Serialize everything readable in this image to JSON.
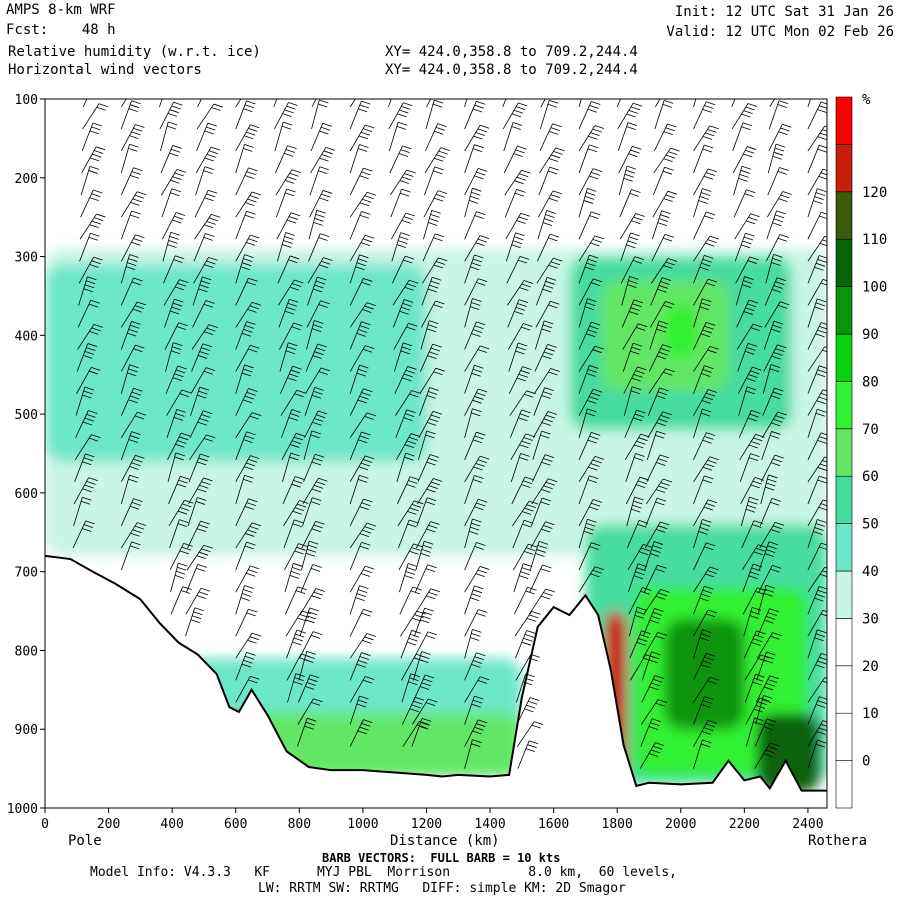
{
  "header": {
    "model": "AMPS 8-km WRF",
    "fcst": "Fcst:    48 h",
    "init": "Init: 12 UTC Sat 31 Jan 26",
    "valid": "Valid: 12 UTC Mon 02 Feb 26",
    "field1": "Relative humidity (w.r.t. ice)",
    "field2": "Horizontal wind vectors",
    "xy1": "XY= 424.0,358.8 to 709.2,244.4",
    "xy2": "XY= 424.0,358.8 to 709.2,244.4"
  },
  "footer": {
    "barb": "BARB VECTORS:  FULL BARB = 10 kts",
    "model_info": "Model Info: V4.3.3   KF      MYJ PBL  Morrison          8.0 km,  60 levels,",
    "physics": "LW: RRTM SW: RRTMG   DIFF: simple KM: 2D Smagor"
  },
  "chart_data": {
    "type": "heatmap",
    "title": "Relative humidity (w.r.t. ice)",
    "xlabel": "Distance (km)",
    "ylabel": "",
    "x_endpoints": {
      "left": "Pole",
      "right": "Rothera"
    },
    "xlim": [
      0,
      2460
    ],
    "ylim": [
      1000,
      100
    ],
    "x_ticks": [
      0,
      200,
      400,
      600,
      800,
      1000,
      1200,
      1400,
      1600,
      1800,
      2000,
      2200,
      2400
    ],
    "y_ticks": [
      100,
      200,
      300,
      400,
      500,
      600,
      700,
      800,
      900,
      1000
    ],
    "colorbar": {
      "unit": "%",
      "levels": [
        0,
        10,
        20,
        30,
        40,
        50,
        60,
        70,
        80,
        90,
        100,
        110,
        120
      ],
      "colors": [
        "#ffffff",
        "#ffffff",
        "#ffffff",
        "#ffffff",
        "#c8f5e6",
        "#6ee6c8",
        "#46dca0",
        "#64e664",
        "#32f032",
        "#0ad20a",
        "#0a960a",
        "#0a640a",
        "#3c5a0a",
        "#c81e0a",
        "#ff0000"
      ]
    },
    "terrain_profile": [
      [
        0,
        680
      ],
      [
        80,
        684
      ],
      [
        150,
        700
      ],
      [
        220,
        715
      ],
      [
        300,
        735
      ],
      [
        360,
        765
      ],
      [
        420,
        790
      ],
      [
        480,
        805
      ],
      [
        540,
        830
      ],
      [
        580,
        872
      ],
      [
        610,
        878
      ],
      [
        650,
        850
      ],
      [
        700,
        882
      ],
      [
        760,
        928
      ],
      [
        830,
        948
      ],
      [
        900,
        952
      ],
      [
        1000,
        952
      ],
      [
        1100,
        955
      ],
      [
        1200,
        958
      ],
      [
        1250,
        960
      ],
      [
        1300,
        958
      ],
      [
        1400,
        960
      ],
      [
        1460,
        958
      ],
      [
        1500,
        860
      ],
      [
        1550,
        770
      ],
      [
        1600,
        745
      ],
      [
        1650,
        755
      ],
      [
        1700,
        730
      ],
      [
        1740,
        755
      ],
      [
        1780,
        825
      ],
      [
        1820,
        920
      ],
      [
        1860,
        972
      ],
      [
        1900,
        968
      ],
      [
        2000,
        970
      ],
      [
        2100,
        968
      ],
      [
        2150,
        940
      ],
      [
        2200,
        965
      ],
      [
        2250,
        960
      ],
      [
        2280,
        975
      ],
      [
        2330,
        940
      ],
      [
        2380,
        978
      ],
      [
        2440,
        978
      ],
      [
        2460,
        978
      ]
    ],
    "rh_regions": [
      {
        "x": [
          0,
          2460
        ],
        "p": [
          290,
          680
        ],
        "rh": 35
      },
      {
        "x": [
          0,
          1200
        ],
        "p": [
          310,
          560
        ],
        "rh": 45
      },
      {
        "x": [
          1650,
          2350
        ],
        "p": [
          300,
          520
        ],
        "rh": 55
      },
      {
        "x": [
          1750,
          2150
        ],
        "p": [
          330,
          470
        ],
        "rh": 65
      },
      {
        "x": [
          1950,
          2050
        ],
        "p": [
          360,
          430
        ],
        "rh": 75
      },
      {
        "x": [
          1700,
          2460
        ],
        "p": [
          640,
          970
        ],
        "rh": 55
      },
      {
        "x": [
          1850,
          2400
        ],
        "p": [
          720,
          960
        ],
        "rh": 75
      },
      {
        "x": [
          1950,
          2200
        ],
        "p": [
          760,
          900
        ],
        "rh": 95
      },
      {
        "x": [
          2240,
          2440
        ],
        "p": [
          880,
          980
        ],
        "rh": 105
      },
      {
        "x": [
          1760,
          1830
        ],
        "p": [
          750,
          970
        ],
        "rh": 120
      },
      {
        "x": [
          300,
          1500
        ],
        "p": [
          810,
          960
        ],
        "rh": 45
      },
      {
        "x": [
          500,
          1500
        ],
        "p": [
          880,
          960
        ],
        "rh": 65
      }
    ],
    "wind_barbs": {
      "x_stations": [
        120,
        240,
        360,
        480,
        600,
        720,
        840,
        960,
        1080,
        1200,
        1320,
        1440,
        1560,
        1680,
        1800,
        1920,
        2040,
        2160,
        2280,
        2400
      ],
      "direction": "westerly",
      "speed_kts_range": [
        10,
        60
      ]
    }
  }
}
